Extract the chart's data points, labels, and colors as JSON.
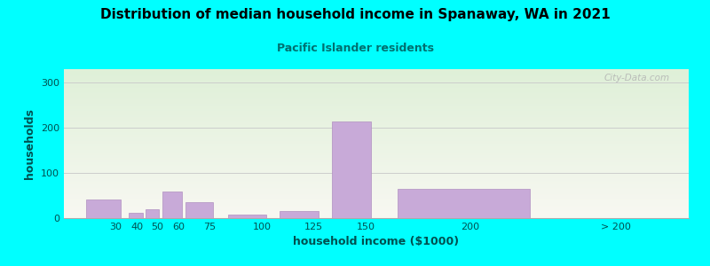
{
  "title": "Distribution of median household income in Spanaway, WA in 2021",
  "subtitle": "Pacific Islander residents",
  "xlabel": "household income ($1000)",
  "ylabel": "households",
  "background_color": "#00FFFF",
  "plot_bg_gradient_top": "#dff0d8",
  "plot_bg_gradient_bottom": "#f8f8f2",
  "bar_color": "#c8aad8",
  "bar_edge_color": "#b090c0",
  "grid_color": "#cccccc",
  "title_color": "#000000",
  "subtitle_color": "#007070",
  "axis_label_color": "#005050",
  "watermark": "City-Data.com",
  "bar_lefts": [
    15,
    36,
    44,
    52,
    63,
    83,
    108,
    133,
    163,
    240
  ],
  "bar_widths": [
    18,
    7,
    7,
    10,
    14,
    20,
    20,
    20,
    68,
    58
  ],
  "bar_heights": [
    42,
    12,
    20,
    58,
    35,
    8,
    15,
    215,
    65,
    0
  ],
  "tick_positions": [
    30,
    40,
    50,
    60,
    75,
    100,
    125,
    150,
    200,
    270
  ],
  "tick_labels": [
    "30",
    "40",
    "50",
    "60",
    "75",
    "100",
    "125",
    "150",
    "200",
    "> 200"
  ],
  "ylim": [
    0,
    330
  ],
  "yticks": [
    0,
    100,
    200,
    300
  ],
  "xlim_left": 5,
  "xlim_right": 305
}
